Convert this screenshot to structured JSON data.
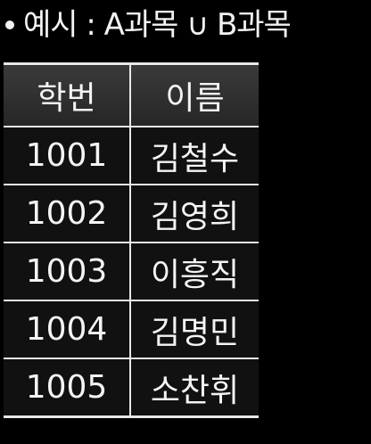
{
  "heading": {
    "text": "예시 : A과목 ∪ B과목"
  },
  "table": {
    "headers": [
      "학번",
      "이름"
    ],
    "rows": [
      [
        "1001",
        "김철수"
      ],
      [
        "1002",
        "김영희"
      ],
      [
        "1003",
        "이흥직"
      ],
      [
        "1004",
        "김명민"
      ],
      [
        "1005",
        "소찬휘"
      ]
    ]
  }
}
